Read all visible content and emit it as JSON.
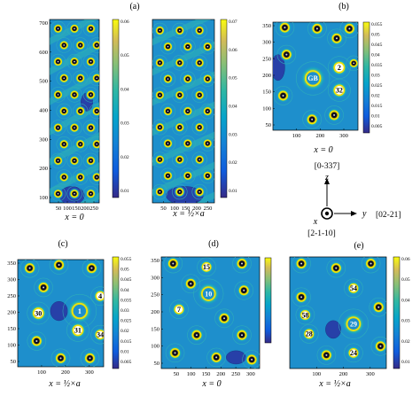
{
  "panels": [
    {
      "id": "a-left",
      "label": "(a)",
      "caption": "x = 0",
      "ylim": [
        0,
        700
      ],
      "yticks": [
        "700",
        "600",
        "500",
        "400",
        "300",
        "200",
        "100"
      ],
      "xticks": [
        "50",
        "100",
        "150",
        "200",
        "250"
      ],
      "colorbar": {
        "min": 0,
        "max": 0.06,
        "ticks": [
          "0.06",
          "0.05",
          "0.04",
          "0.03",
          "0.02",
          "0.01"
        ]
      },
      "atom_labels": []
    },
    {
      "id": "a-right",
      "label": "",
      "caption": "x = ½×a",
      "ylim": [
        0,
        700
      ],
      "yticks": [],
      "xticks": [
        "50",
        "100",
        "150",
        "200",
        "250"
      ],
      "colorbar": {
        "min": 0,
        "max": 0.07,
        "ticks": [
          "0.07",
          "0.06",
          "0.05",
          "0.04",
          "0.03",
          "0.02",
          "0.01"
        ]
      },
      "atom_labels": []
    },
    {
      "id": "b",
      "label": "(b)",
      "caption": "x = 0",
      "ylim": [
        50,
        370
      ],
      "yticks": [
        "350",
        "300",
        "250",
        "200",
        "150",
        "100",
        "50"
      ],
      "xticks": [
        "100",
        "200",
        "300"
      ],
      "colorbar": {
        "min": 0.005,
        "max": 0.055,
        "ticks": [
          "0.055",
          "0.05",
          "0.045",
          "0.04",
          "0.035",
          "0.03",
          "0.025",
          "0.02",
          "0.015",
          "0.01",
          "0.005"
        ]
      },
      "atom_labels": [
        "GB",
        "2",
        "32"
      ]
    },
    {
      "id": "c",
      "label": "(c)",
      "caption": "x = ½×a",
      "ylim": [
        50,
        370
      ],
      "yticks": [
        "350",
        "300",
        "250",
        "200",
        "150",
        "100",
        "50"
      ],
      "xticks": [
        "100",
        "200",
        "300"
      ],
      "colorbar": {
        "min": 0.005,
        "max": 0.055,
        "ticks": [
          "0.055",
          "0.05",
          "0.045",
          "0.04",
          "0.035",
          "0.03",
          "0.025",
          "0.02",
          "0.015",
          "0.01",
          "0.005"
        ]
      },
      "atom_labels": [
        "1",
        "4",
        "30",
        "31",
        "34"
      ]
    },
    {
      "id": "d",
      "label": "(d)",
      "caption": "x = 0",
      "ylim": [
        0,
        350
      ],
      "yticks": [
        "350",
        "300",
        "250",
        "200",
        "150",
        "100",
        "50"
      ],
      "xticks": [
        "50",
        "100",
        "150",
        "200",
        "250",
        "300"
      ],
      "colorbar": {
        "min": 0.005,
        "max": 0.055,
        "ticks": []
      },
      "atom_labels": [
        "15",
        "10",
        "7"
      ]
    },
    {
      "id": "e",
      "label": "(e)",
      "caption": "x = ½×a",
      "ylim": [
        0,
        350
      ],
      "yticks": [],
      "xticks": [
        "100",
        "200",
        "300"
      ],
      "colorbar": {
        "min": 0,
        "max": 0.06,
        "ticks": [
          "0.06",
          "0.05",
          "0.04",
          "0.03",
          "0.02",
          "0.01"
        ]
      },
      "atom_labels": [
        "54",
        "58",
        "28",
        "29",
        "24"
      ]
    }
  ],
  "orientation": {
    "z_label": "z",
    "z_dir": "[0-337]",
    "y_label": "y",
    "y_dir": "[02-21]",
    "x_label": "x",
    "x_dir": "[2-1-10]"
  },
  "colors": {
    "field_bg": "#1e8fcc",
    "low": "#3a2b8f",
    "high": "#f6e400",
    "ring": "#2fb0b8"
  }
}
